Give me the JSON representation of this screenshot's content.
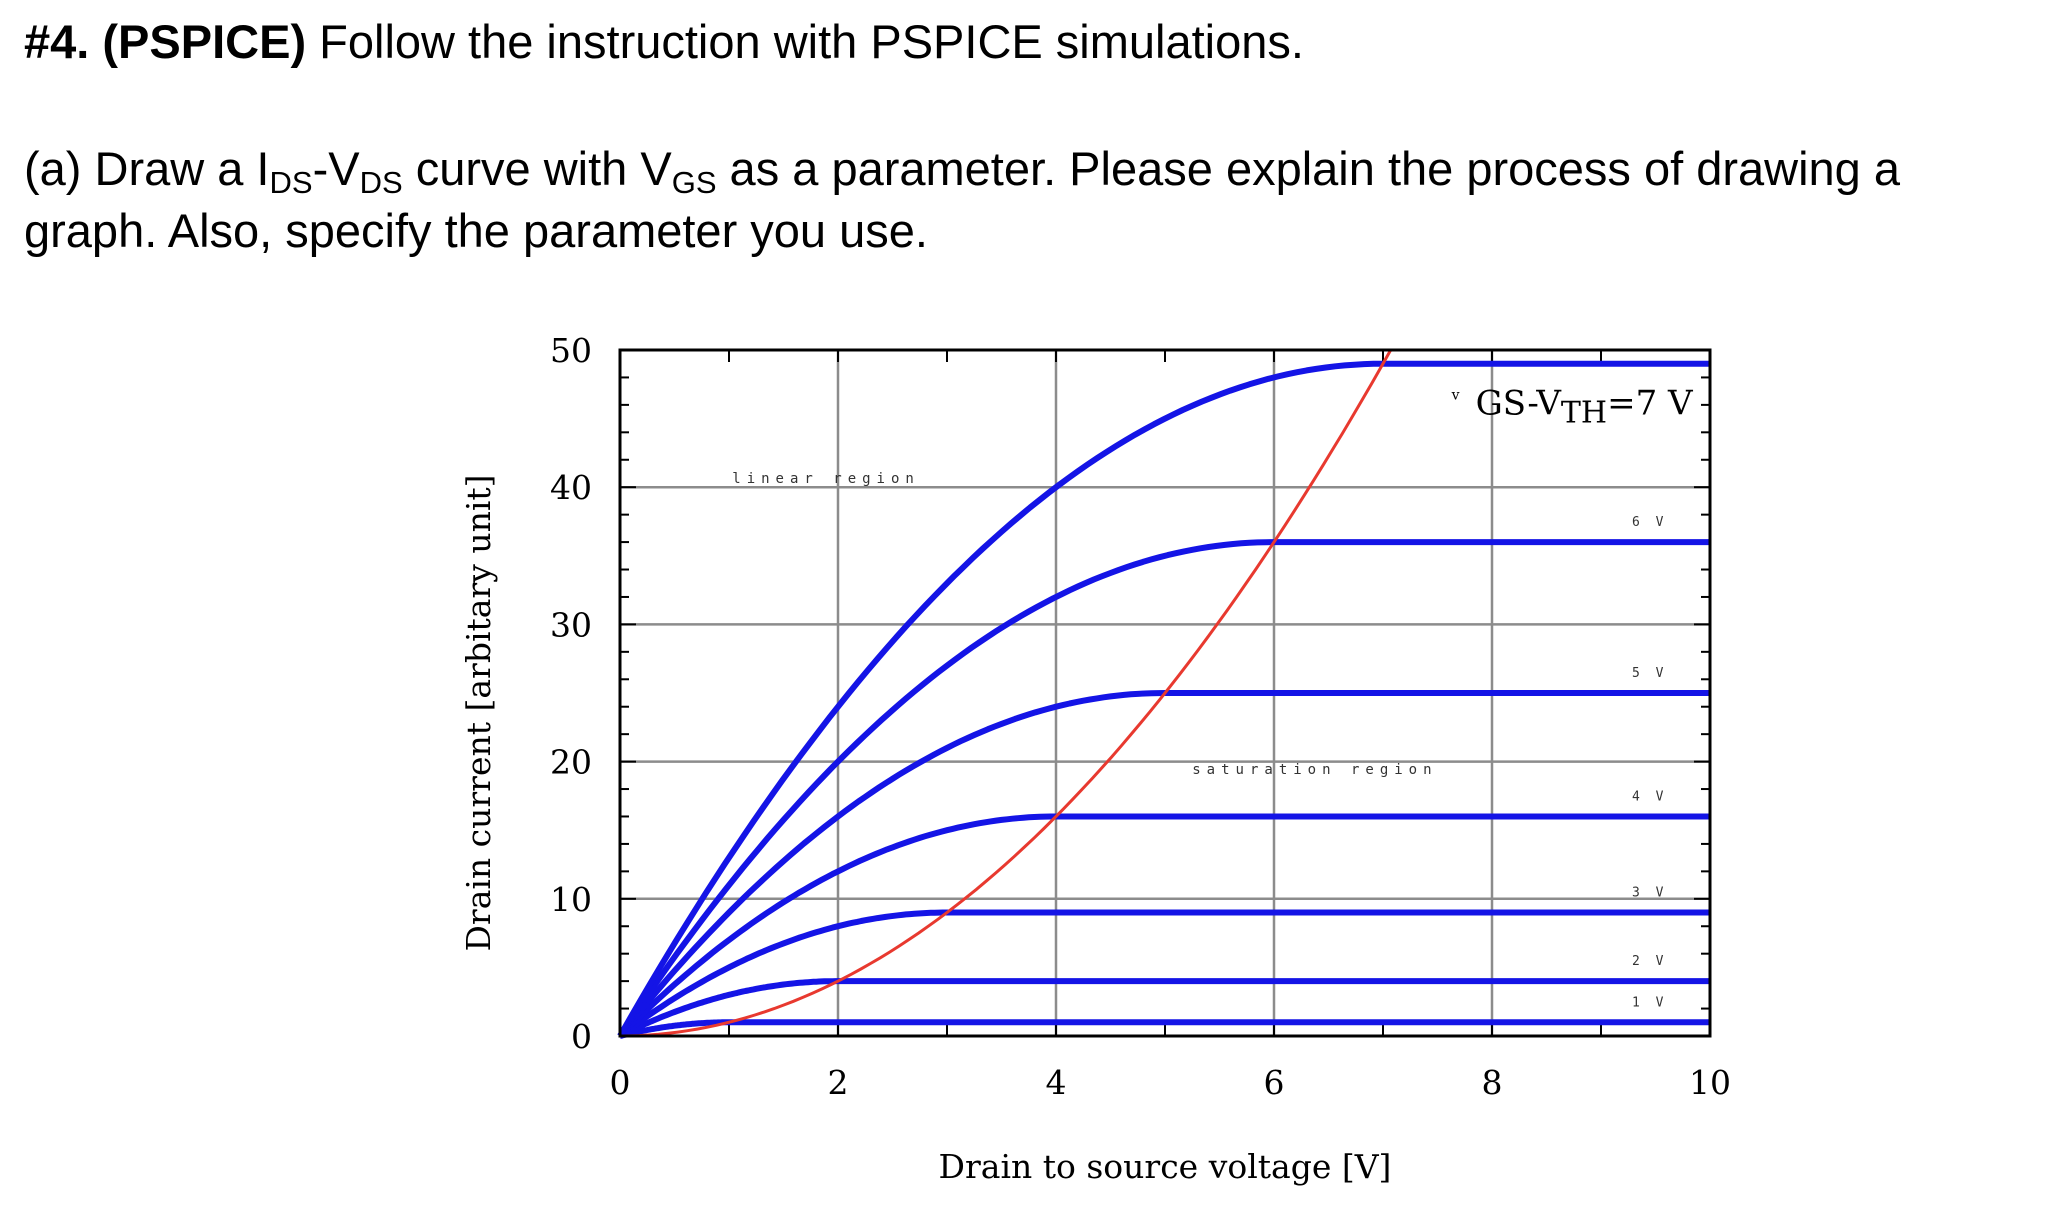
{
  "question": {
    "number": "#4.",
    "tag": "(PSPICE)",
    "title_rest": " Follow the instruction with PSPICE simulations.",
    "part_a": {
      "prefix": "(a) Draw a I",
      "sub1": "DS",
      "dash": "-V",
      "sub2": "DS",
      "mid": " curve with V",
      "sub3": "GS",
      "rest": " as a parameter. Please explain the process of drawing a graph. Also, specify the parameter you use."
    }
  },
  "chart_data": {
    "type": "line",
    "xlabel": "Drain to source voltage [V]",
    "ylabel": "Drain current [arbitary unit]",
    "xlim": [
      0,
      10
    ],
    "ylim": [
      0,
      50
    ],
    "xticks": [
      "0",
      "2",
      "4",
      "6",
      "8",
      "10"
    ],
    "yticks": [
      "0",
      "10",
      "20",
      "30",
      "40",
      "50"
    ],
    "grid": true,
    "series": [
      {
        "name": "1 V",
        "vgs_minus_vth": 1,
        "saturation_current": 1
      },
      {
        "name": "2 V",
        "vgs_minus_vth": 2,
        "saturation_current": 4
      },
      {
        "name": "3 V",
        "vgs_minus_vth": 3,
        "saturation_current": 9
      },
      {
        "name": "4 V",
        "vgs_minus_vth": 4,
        "saturation_current": 16
      },
      {
        "name": "5 V",
        "vgs_minus_vth": 5,
        "saturation_current": 25
      },
      {
        "name": "6 V",
        "vgs_minus_vth": 6,
        "saturation_current": 36
      },
      {
        "name": "GS-VTH=7 V",
        "vgs_minus_vth": 7,
        "saturation_current": 49
      }
    ],
    "boundary_curve": {
      "formula": "I = VDS^2",
      "color": "#e8392f"
    },
    "top_label": {
      "v": "v",
      "main": "GS-V",
      "sub": "TH",
      "tail": "=7 V"
    },
    "annotations": {
      "linear_region": "linear region",
      "saturation_region": "saturation region"
    },
    "colors": {
      "series": "#1414e6",
      "boundary": "#e8392f",
      "grid": "#8c8c8c",
      "axis": "#000000"
    }
  }
}
